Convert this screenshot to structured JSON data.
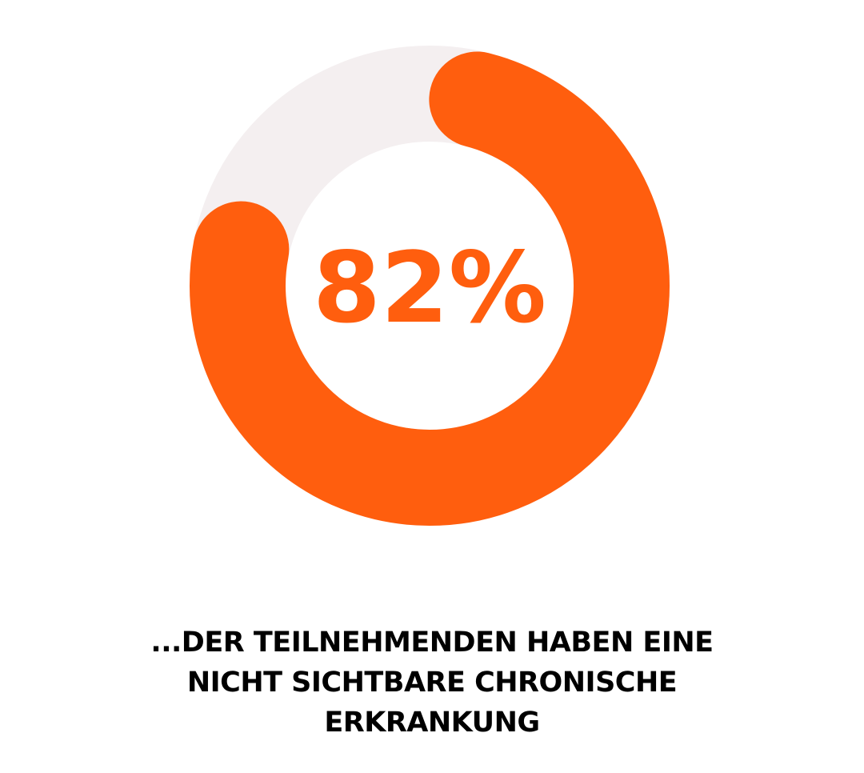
{
  "chart_data": {
    "type": "donut",
    "values": [
      82
    ],
    "value_labels": [
      "82%"
    ],
    "ylim": [
      0,
      100
    ],
    "color": "#ff5e0e",
    "track_color": "#f4eff0",
    "caption": "...DER TEILNEHMENDEN HABEN EINE NICHT SICHTBARE CHRONISCHE ERKRANKUNG"
  }
}
